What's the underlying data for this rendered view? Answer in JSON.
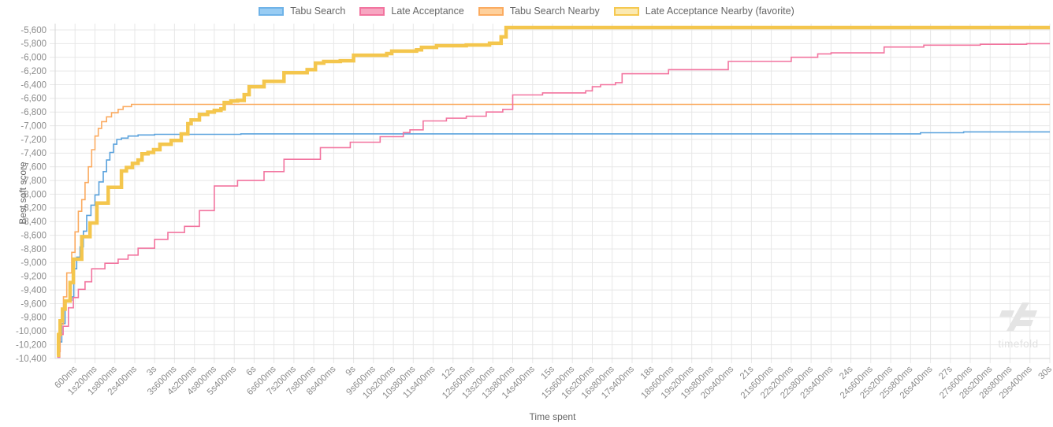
{
  "legend": {
    "items": [
      {
        "id": "tabu-search",
        "label": "Tabu Search",
        "fill": "#98ccf3",
        "border": "#6fb3e8"
      },
      {
        "id": "late-acceptance",
        "label": "Late Acceptance",
        "fill": "#f7a6c1",
        "border": "#f2749f"
      },
      {
        "id": "tabu-search-nearby",
        "label": "Tabu Search Nearby",
        "fill": "#fed09c",
        "border": "#fbab60"
      },
      {
        "id": "late-acceptance-nearby",
        "label": "Late Acceptance Nearby (favorite)",
        "fill": "#fbe9b1",
        "border": "#f5c84f"
      }
    ]
  },
  "axes": {
    "y_title": "Best soft score",
    "x_title": "Time spent",
    "y_ticks": [
      "-5,600",
      "-5,800",
      "-6,000",
      "-6,200",
      "-6,400",
      "-6,600",
      "-6,800",
      "-7,000",
      "-7,200",
      "-7,400",
      "-7,600",
      "-7,800",
      "-8,000",
      "-8,200",
      "-8,400",
      "-8,600",
      "-8,800",
      "-9,000",
      "-9,200",
      "-9,400",
      "-9,600",
      "-9,800",
      "-10,000",
      "-10,200",
      "-10,400"
    ],
    "x_ticks": [
      "600ms",
      "1s200ms",
      "1s800ms",
      "2s400ms",
      "3s",
      "3s600ms",
      "4s200ms",
      "4s800ms",
      "5s400ms",
      "6s",
      "6s600ms",
      "7s200ms",
      "7s800ms",
      "8s400ms",
      "9s",
      "9s600ms",
      "10s200ms",
      "10s800ms",
      "11s400ms",
      "12s",
      "12s600ms",
      "13s200ms",
      "13s800ms",
      "14s400ms",
      "15s",
      "15s600ms",
      "16s200ms",
      "16s800ms",
      "17s400ms",
      "18s",
      "18s600ms",
      "19s200ms",
      "19s800ms",
      "20s400ms",
      "21s",
      "21s600ms",
      "22s200ms",
      "22s800ms",
      "23s400ms",
      "24s",
      "24s600ms",
      "25s200ms",
      "25s800ms",
      "26s400ms",
      "27s",
      "27s600ms",
      "28s200ms",
      "28s800ms",
      "29s400ms",
      "30s"
    ]
  },
  "watermark": {
    "text": "timefold"
  },
  "colors": {
    "grid": "#e7e7e7",
    "axis_border": "#d6d6d6",
    "tick_text": "#8c8c8c",
    "title_text": "#666666",
    "watermark": "#e4e4e4"
  },
  "chart_data": {
    "type": "line",
    "step_mode": "after",
    "title": "",
    "xlabel": "Time spent",
    "ylabel": "Best soft score",
    "x_unit": "seconds",
    "xlim": [
      0,
      30
    ],
    "ylim": [
      -10400,
      -5508
    ],
    "y_tick_values": [
      -5600,
      -5800,
      -6000,
      -6200,
      -6400,
      -6600,
      -6800,
      -7000,
      -7200,
      -7400,
      -7600,
      -7800,
      -8000,
      -8200,
      -8400,
      -8600,
      -8800,
      -9000,
      -9200,
      -9400,
      -9600,
      -9800,
      -10000,
      -10200,
      -10400
    ],
    "x_tick_interval_s": 0.6,
    "grid": true,
    "legend_position": "top",
    "series": [
      {
        "name": "Tabu Search",
        "color": "#5aa2dd",
        "line_width": 1.6,
        "points": [
          [
            0.06,
            -10380
          ],
          [
            0.12,
            -10160
          ],
          [
            0.2,
            -9890
          ],
          [
            0.3,
            -9550
          ],
          [
            0.5,
            -9500
          ],
          [
            0.56,
            -9090
          ],
          [
            0.65,
            -8920
          ],
          [
            0.75,
            -8770
          ],
          [
            0.85,
            -8540
          ],
          [
            0.95,
            -8310
          ],
          [
            1.08,
            -8160
          ],
          [
            1.2,
            -8010
          ],
          [
            1.32,
            -7820
          ],
          [
            1.45,
            -7670
          ],
          [
            1.55,
            -7500
          ],
          [
            1.65,
            -7390
          ],
          [
            1.76,
            -7270
          ],
          [
            1.86,
            -7200
          ],
          [
            2.0,
            -7180
          ],
          [
            2.2,
            -7150
          ],
          [
            2.5,
            -7135
          ],
          [
            3.0,
            -7125
          ],
          [
            5.6,
            -7118
          ],
          [
            26.1,
            -7102
          ],
          [
            27.4,
            -7090
          ]
        ]
      },
      {
        "name": "Tabu Search Nearby",
        "color": "#fbab60",
        "line_width": 1.6,
        "points": [
          [
            0.05,
            -10300
          ],
          [
            0.15,
            -9900
          ],
          [
            0.25,
            -9500
          ],
          [
            0.35,
            -9150
          ],
          [
            0.5,
            -8850
          ],
          [
            0.6,
            -8550
          ],
          [
            0.7,
            -8250
          ],
          [
            0.8,
            -8080
          ],
          [
            0.9,
            -7830
          ],
          [
            1.0,
            -7600
          ],
          [
            1.1,
            -7350
          ],
          [
            1.2,
            -7150
          ],
          [
            1.3,
            -7040
          ],
          [
            1.4,
            -6940
          ],
          [
            1.55,
            -6870
          ],
          [
            1.7,
            -6810
          ],
          [
            1.9,
            -6760
          ],
          [
            2.05,
            -6720
          ],
          [
            2.3,
            -6688
          ]
        ]
      },
      {
        "name": "Late Acceptance",
        "color": "#f2749f",
        "line_width": 1.6,
        "points": [
          [
            0.06,
            -10380
          ],
          [
            0.14,
            -10050
          ],
          [
            0.24,
            -9930
          ],
          [
            0.4,
            -9660
          ],
          [
            0.55,
            -9510
          ],
          [
            0.7,
            -9390
          ],
          [
            0.9,
            -9280
          ],
          [
            1.1,
            -9090
          ],
          [
            1.5,
            -9010
          ],
          [
            1.9,
            -8950
          ],
          [
            2.2,
            -8890
          ],
          [
            2.5,
            -8790
          ],
          [
            3.0,
            -8660
          ],
          [
            3.4,
            -8560
          ],
          [
            3.9,
            -8470
          ],
          [
            4.35,
            -8240
          ],
          [
            4.8,
            -7880
          ],
          [
            5.5,
            -7800
          ],
          [
            6.3,
            -7670
          ],
          [
            6.9,
            -7490
          ],
          [
            8.0,
            -7320
          ],
          [
            8.9,
            -7240
          ],
          [
            9.8,
            -7160
          ],
          [
            10.5,
            -7100
          ],
          [
            10.7,
            -7060
          ],
          [
            11.1,
            -6930
          ],
          [
            11.8,
            -6890
          ],
          [
            12.4,
            -6860
          ],
          [
            13.0,
            -6800
          ],
          [
            13.5,
            -6760
          ],
          [
            13.8,
            -6550
          ],
          [
            14.7,
            -6520
          ],
          [
            16.0,
            -6490
          ],
          [
            16.2,
            -6430
          ],
          [
            16.45,
            -6400
          ],
          [
            16.9,
            -6370
          ],
          [
            17.1,
            -6240
          ],
          [
            18.5,
            -6180
          ],
          [
            20.3,
            -6060
          ],
          [
            22.2,
            -6000
          ],
          [
            23.0,
            -5950
          ],
          [
            23.4,
            -5935
          ],
          [
            25.0,
            -5850
          ],
          [
            26.2,
            -5822
          ],
          [
            27.9,
            -5810
          ],
          [
            29.3,
            -5800
          ]
        ]
      },
      {
        "name": "Late Acceptance Nearby (favorite)",
        "color": "#f4c64d",
        "line_width": 4.5,
        "points": [
          [
            0.05,
            -10350
          ],
          [
            0.1,
            -10050
          ],
          [
            0.15,
            -9850
          ],
          [
            0.22,
            -9680
          ],
          [
            0.3,
            -9560
          ],
          [
            0.45,
            -9290
          ],
          [
            0.55,
            -8950
          ],
          [
            0.8,
            -8620
          ],
          [
            1.05,
            -8420
          ],
          [
            1.26,
            -8130
          ],
          [
            1.6,
            -7900
          ],
          [
            2.0,
            -7660
          ],
          [
            2.15,
            -7610
          ],
          [
            2.33,
            -7550
          ],
          [
            2.5,
            -7500
          ],
          [
            2.62,
            -7410
          ],
          [
            2.8,
            -7390
          ],
          [
            2.97,
            -7350
          ],
          [
            3.16,
            -7270
          ],
          [
            3.5,
            -7215
          ],
          [
            3.8,
            -7120
          ],
          [
            4.0,
            -6970
          ],
          [
            4.1,
            -6915
          ],
          [
            4.35,
            -6835
          ],
          [
            4.6,
            -6800
          ],
          [
            4.8,
            -6775
          ],
          [
            5.0,
            -6755
          ],
          [
            5.1,
            -6660
          ],
          [
            5.3,
            -6640
          ],
          [
            5.5,
            -6630
          ],
          [
            5.7,
            -6545
          ],
          [
            5.85,
            -6430
          ],
          [
            6.3,
            -6350
          ],
          [
            6.9,
            -6225
          ],
          [
            7.6,
            -6180
          ],
          [
            7.85,
            -6085
          ],
          [
            8.1,
            -6060
          ],
          [
            8.6,
            -6050
          ],
          [
            9.0,
            -5970
          ],
          [
            10.0,
            -5945
          ],
          [
            10.15,
            -5910
          ],
          [
            10.9,
            -5890
          ],
          [
            11.05,
            -5855
          ],
          [
            11.5,
            -5830
          ],
          [
            12.4,
            -5820
          ],
          [
            13.1,
            -5795
          ],
          [
            13.45,
            -5700
          ],
          [
            13.6,
            -5565
          ]
        ]
      }
    ]
  }
}
